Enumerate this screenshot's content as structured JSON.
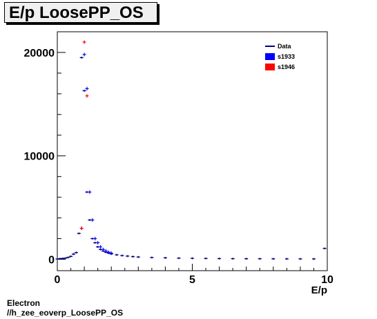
{
  "title": "E/p LoosePP_OS",
  "footer": {
    "line1": "Electron",
    "line2": "//h_zee_eoverp_LoosePP_OS"
  },
  "chart_data": {
    "type": "histogram",
    "title": "E/p LoosePP_OS",
    "xlabel": "E/p",
    "ylabel": "",
    "xlim": [
      0,
      10
    ],
    "ylim": [
      -1100,
      22000
    ],
    "x_ticks": [
      0,
      5,
      10
    ],
    "y_ticks": [
      0,
      10000,
      20000
    ],
    "grid": false,
    "legend_position": "top-right",
    "colors": {
      "Data": "#00007f",
      "s1933": "#0000ff",
      "s1946": "#ff0000"
    },
    "series": [
      {
        "name": "Data",
        "style": "line",
        "x": [
          0.0,
          0.1,
          0.2,
          0.3,
          0.4,
          0.5,
          0.6,
          0.7,
          0.8,
          0.9,
          1.0,
          1.1,
          1.2,
          1.3,
          1.4,
          1.5,
          1.6,
          1.7,
          1.8,
          1.9,
          2.0,
          2.2,
          2.4,
          2.6,
          2.8,
          3.0,
          3.5,
          4.0,
          4.5,
          5.0,
          5.5,
          6.0,
          6.5,
          7.0,
          7.5,
          8.0,
          8.5,
          9.0,
          9.5,
          9.9
        ],
        "y": [
          30,
          60,
          80,
          110,
          180,
          280,
          500,
          650,
          2500,
          19500,
          16300,
          6500,
          3800,
          2000,
          1600,
          1200,
          950,
          800,
          680,
          600,
          520,
          430,
          360,
          310,
          260,
          220,
          170,
          140,
          110,
          95,
          80,
          70,
          60,
          55,
          50,
          45,
          40,
          38,
          35,
          1050
        ]
      },
      {
        "name": "s1933",
        "style": "markers",
        "x": [
          0.9,
          1.0,
          1.1,
          1.2,
          1.3,
          1.4,
          1.5,
          1.6,
          1.7,
          1.8,
          1.9,
          2.0
        ],
        "y": [
          3000,
          19800,
          16500,
          6500,
          3800,
          2000,
          1600,
          1200,
          950,
          800,
          680,
          600
        ]
      },
      {
        "name": "s1946",
        "style": "markers",
        "x": [
          0.9,
          1.0,
          1.1
        ],
        "y": [
          3000,
          21000,
          15800
        ]
      }
    ]
  }
}
